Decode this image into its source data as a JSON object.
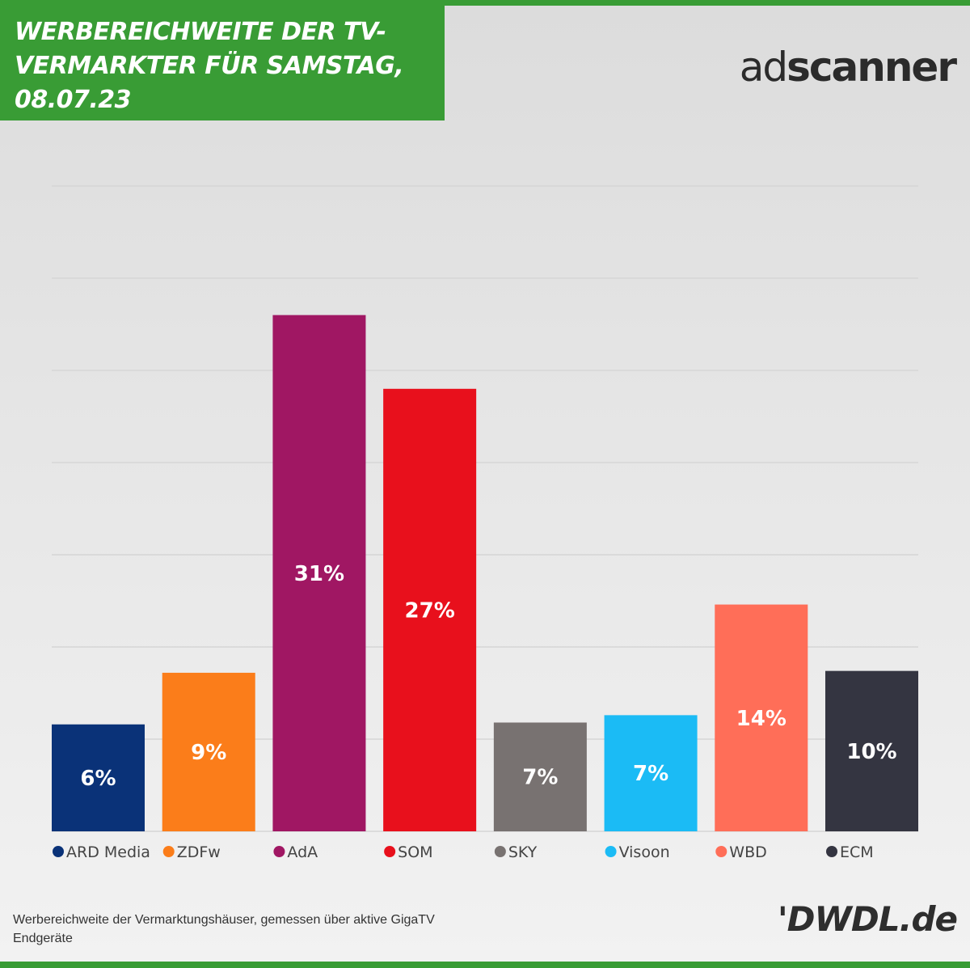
{
  "header": {
    "title_lines": [
      "WERBEREICHWEITE DER TV-",
      "VERMARKTER FÜR SAMSTAG,",
      "08.07.23"
    ],
    "brand_logo_ad": "ad",
    "brand_logo_rest": "scanner"
  },
  "footer": {
    "note_lines": [
      "Werbereichweite der Vermarktungshäuser, gemessen über aktive GigaTV",
      "Endgeräte"
    ],
    "publisher_logo": "'DWDL.de"
  },
  "chart_data": {
    "type": "bar",
    "title": "WERBEREICHWEITE DER TV-VERMARKTER FÜR SAMSTAG, 08.07.23",
    "categories": [
      "ARD Media",
      "ZDFw",
      "AdA",
      "SOM",
      "SKY",
      "Visoon",
      "WBD",
      "ECM"
    ],
    "values": [
      6,
      9,
      31,
      27,
      7,
      7,
      14,
      10
    ],
    "value_labels": [
      "6%",
      "9%",
      "31%",
      "27%",
      "7%",
      "7%",
      "14%",
      "10%"
    ],
    "bar_heights_relative": [
      5.8,
      8.6,
      28.0,
      24.0,
      5.9,
      6.3,
      12.3,
      8.7
    ],
    "colors": [
      "#0a3278",
      "#fb7d1a",
      "#a01763",
      "#e8101c",
      "#787271",
      "#1bbbf5",
      "#ff6e58",
      "#343541"
    ],
    "ylim": [
      0,
      35
    ],
    "grid": true,
    "legend_position": "bottom",
    "xlabel": "",
    "ylabel": ""
  }
}
